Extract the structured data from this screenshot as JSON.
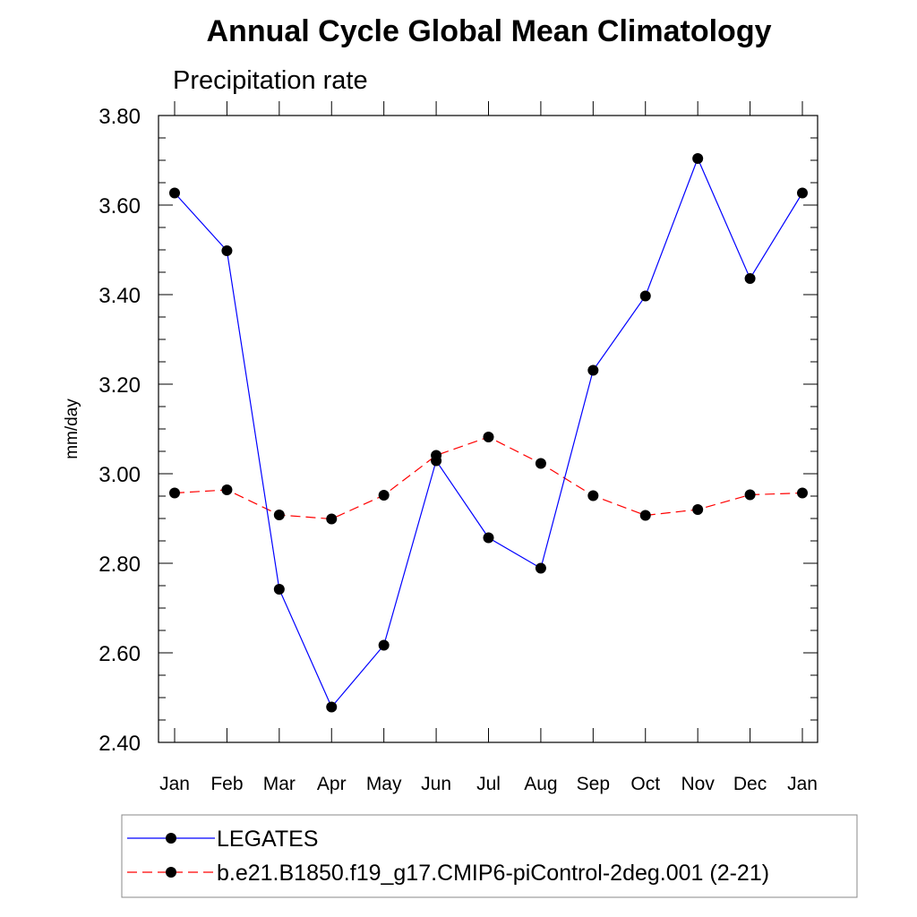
{
  "title": "Annual Cycle Global Mean Climatology",
  "subtitle": "Precipitation rate",
  "chart_data": {
    "type": "line",
    "title": "Annual Cycle Global Mean Climatology",
    "subtitle": "Precipitation rate",
    "xlabel": "",
    "ylabel": "mm/day",
    "categories": [
      "Jan",
      "Feb",
      "Mar",
      "Apr",
      "May",
      "Jun",
      "Jul",
      "Aug",
      "Sep",
      "Oct",
      "Nov",
      "Dec",
      "Jan"
    ],
    "ylim": [
      2.4,
      3.8
    ],
    "yticks": [
      2.4,
      2.6,
      2.8,
      3.0,
      3.2,
      3.4,
      3.6,
      3.8
    ],
    "ytick_labels": [
      "2.40",
      "2.60",
      "2.80",
      "3.00",
      "3.20",
      "3.40",
      "3.60",
      "3.80"
    ],
    "series": [
      {
        "name": "LEGATES",
        "color": "#0000ff",
        "line_style": "solid",
        "marker": "filled-circle",
        "values": [
          3.627,
          3.498,
          2.742,
          2.479,
          2.617,
          3.029,
          2.857,
          2.789,
          3.231,
          3.397,
          3.704,
          3.436,
          3.627
        ]
      },
      {
        "name": "b.e21.B1850.f19_g17.CMIP6-piControl-2deg.001 (2-21)",
        "color": "#ff0000",
        "line_style": "dashed",
        "marker": "filled-circle",
        "values": [
          2.957,
          2.964,
          2.908,
          2.899,
          2.952,
          3.041,
          3.082,
          3.023,
          2.951,
          2.907,
          2.92,
          2.953,
          2.957
        ]
      }
    ],
    "legend_position": "bottom",
    "grid": false
  }
}
